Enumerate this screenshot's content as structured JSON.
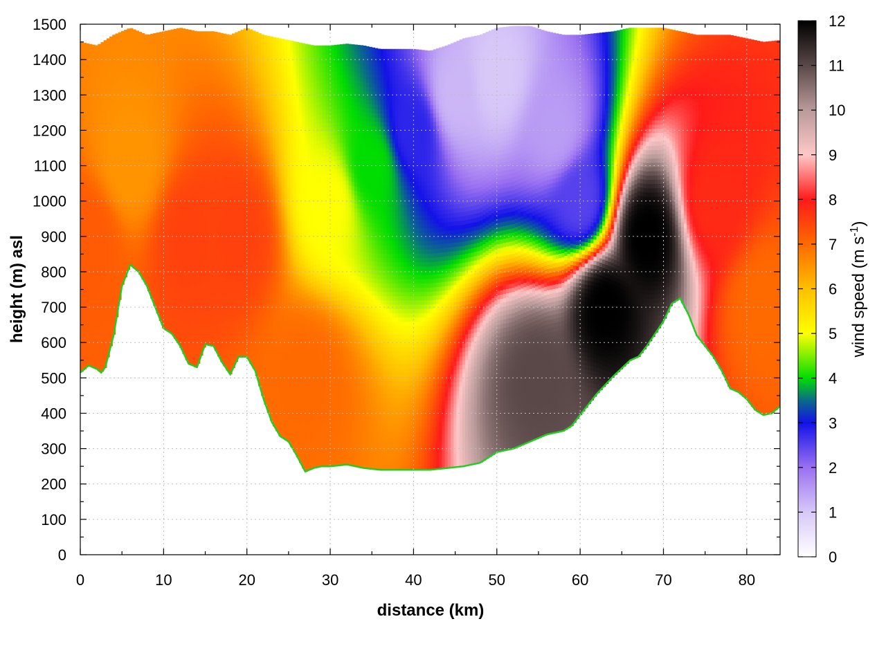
{
  "chart_data": {
    "type": "heatmap",
    "title": "",
    "xlabel": "distance (km)",
    "ylabel": "height (m) asl",
    "xlim": [
      0,
      84
    ],
    "ylim": [
      0,
      1500
    ],
    "x_ticks": [
      0,
      10,
      20,
      30,
      40,
      50,
      60,
      70,
      80
    ],
    "y_ticks": [
      0,
      100,
      200,
      300,
      400,
      500,
      600,
      700,
      800,
      900,
      1000,
      1100,
      1200,
      1300,
      1400,
      1500
    ],
    "grid": true,
    "colorbar": {
      "label_prefix": "wind speed (m s",
      "label_exponent": "-1",
      "label_suffix": ")",
      "range": [
        0,
        12
      ],
      "ticks": [
        0,
        1,
        2,
        3,
        4,
        5,
        6,
        7,
        8,
        9,
        10,
        11,
        12
      ],
      "colors": [
        [
          0,
          "#ffffff"
        ],
        [
          1,
          "#d8c8f8"
        ],
        [
          2,
          "#9a70f0"
        ],
        [
          3,
          "#1212e8"
        ],
        [
          3.5,
          "#0a6a8a"
        ],
        [
          4,
          "#00dd00"
        ],
        [
          5,
          "#ffff00"
        ],
        [
          6,
          "#ffbf00"
        ],
        [
          7,
          "#ff6a00"
        ],
        [
          8,
          "#ff1a1a"
        ],
        [
          9,
          "#ffc8c8"
        ],
        [
          10,
          "#b99a9a"
        ],
        [
          11,
          "#5a4848"
        ],
        [
          12,
          "#000000"
        ]
      ]
    },
    "terrain": {
      "x": [
        0,
        1,
        2,
        2.5,
        3,
        4,
        5,
        6,
        7,
        8,
        9,
        10,
        11,
        12,
        13,
        14,
        15,
        16,
        17,
        18,
        19,
        20,
        21,
        22,
        23,
        24,
        25,
        26,
        27,
        28,
        29,
        30,
        32,
        34,
        36,
        38,
        40,
        42,
        44,
        46,
        48,
        50,
        52,
        54,
        56,
        57,
        58,
        59,
        60,
        62,
        64,
        66,
        67,
        68,
        70,
        71,
        72,
        73,
        74,
        75,
        76,
        77,
        78,
        79,
        80,
        81,
        82,
        83,
        84
      ],
      "height": [
        515,
        535,
        525,
        515,
        530,
        620,
        760,
        820,
        800,
        760,
        700,
        640,
        625,
        590,
        540,
        530,
        595,
        590,
        545,
        510,
        560,
        560,
        520,
        440,
        375,
        335,
        320,
        280,
        235,
        245,
        250,
        250,
        255,
        245,
        240,
        240,
        240,
        240,
        245,
        250,
        260,
        290,
        300,
        320,
        340,
        345,
        350,
        365,
        395,
        455,
        505,
        550,
        560,
        590,
        660,
        710,
        725,
        680,
        620,
        590,
        560,
        520,
        470,
        460,
        440,
        410,
        395,
        400,
        420
      ]
    },
    "top": {
      "x": [
        0,
        2,
        4,
        6,
        8,
        10,
        12,
        14,
        16,
        18,
        20,
        22,
        24,
        26,
        28,
        30,
        32,
        34,
        36,
        38,
        40,
        42,
        44,
        46,
        48,
        50,
        52,
        54,
        56,
        58,
        60,
        62,
        64,
        66,
        68,
        70,
        72,
        74,
        76,
        78,
        80,
        82,
        84
      ],
      "height": [
        1450,
        1440,
        1470,
        1490,
        1470,
        1480,
        1490,
        1480,
        1480,
        1470,
        1490,
        1470,
        1460,
        1450,
        1440,
        1440,
        1445,
        1440,
        1430,
        1430,
        1430,
        1425,
        1440,
        1460,
        1470,
        1490,
        1495,
        1495,
        1480,
        1470,
        1470,
        1475,
        1480,
        1490,
        1490,
        1490,
        1480,
        1470,
        1470,
        1470,
        1460,
        1450,
        1455
      ]
    },
    "wind_speed_samples": [
      {
        "x": 1,
        "z": 900,
        "speed": 7.2
      },
      {
        "x": 6,
        "z": 1100,
        "speed": 6.5
      },
      {
        "x": 13,
        "z": 900,
        "speed": 7.5
      },
      {
        "x": 19,
        "z": 900,
        "speed": 7.5
      },
      {
        "x": 27,
        "z": 500,
        "speed": 7.0
      },
      {
        "x": 30,
        "z": 1000,
        "speed": 5.0
      },
      {
        "x": 35,
        "z": 1100,
        "speed": 4.0
      },
      {
        "x": 40,
        "z": 1200,
        "speed": 2.8
      },
      {
        "x": 45,
        "z": 1300,
        "speed": 1.2
      },
      {
        "x": 50,
        "z": 1350,
        "speed": 1.0
      },
      {
        "x": 57,
        "z": 1200,
        "speed": 1.5
      },
      {
        "x": 60,
        "z": 1000,
        "speed": 2.5
      },
      {
        "x": 55,
        "z": 500,
        "speed": 11.0
      },
      {
        "x": 63,
        "z": 700,
        "speed": 12.0
      },
      {
        "x": 68,
        "z": 900,
        "speed": 12.0
      },
      {
        "x": 76,
        "z": 1000,
        "speed": 7.8
      },
      {
        "x": 82,
        "z": 700,
        "speed": 7.0
      }
    ]
  }
}
